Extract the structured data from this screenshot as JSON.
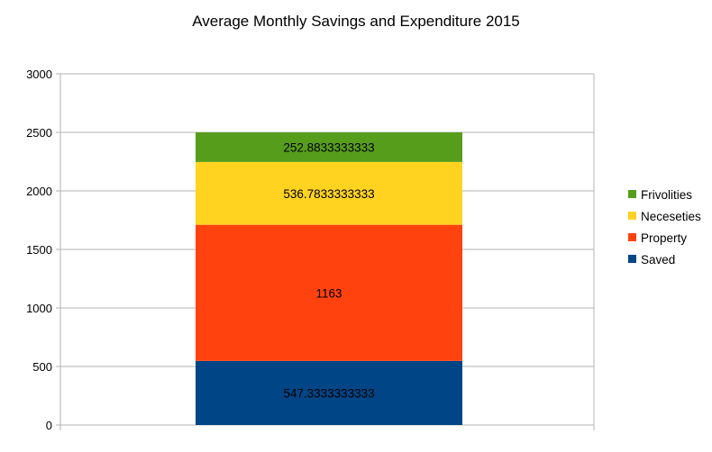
{
  "chart_data": {
    "type": "bar",
    "stacked": true,
    "title": "Average Monthly Savings and Expenditure 2015",
    "xlabel": "",
    "ylabel": "",
    "categories": [
      ""
    ],
    "ylim": [
      0,
      3000
    ],
    "yticks": [
      0,
      500,
      1000,
      1500,
      2000,
      2500,
      3000
    ],
    "grid": true,
    "legend_position": "right",
    "series": [
      {
        "name": "Saved",
        "values": [
          547.3333333333
        ],
        "label": "547.3333333333",
        "color": "#004586"
      },
      {
        "name": "Property",
        "values": [
          1163
        ],
        "label": "1163",
        "color": "#ff420e"
      },
      {
        "name": "Neceseties",
        "values": [
          536.7833333333
        ],
        "label": "536.7833333333",
        "color": "#ffd320"
      },
      {
        "name": "Frivolities",
        "values": [
          252.8833333333
        ],
        "label": "252.8833333333",
        "color": "#579d1c"
      }
    ]
  }
}
